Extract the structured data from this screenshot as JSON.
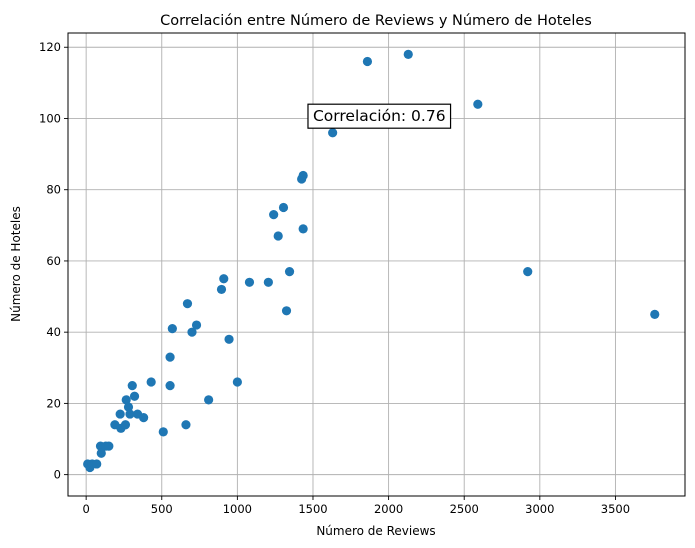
{
  "chart_data": {
    "type": "scatter",
    "title": "Correlación entre Número de Reviews y Número de Hoteles",
    "xlabel": "Número de Reviews",
    "ylabel": "Número de Hoteles",
    "xlim": [
      -120,
      3960
    ],
    "ylim": [
      -6,
      124
    ],
    "xticks": [
      0,
      500,
      1000,
      1500,
      2000,
      2500,
      3000,
      3500
    ],
    "yticks": [
      0,
      20,
      40,
      60,
      80,
      100,
      120
    ],
    "grid": true,
    "marker_color": "#1f77b4",
    "annotation": {
      "text": "Correlación: 0.76",
      "x": 1500,
      "y": 100.5
    },
    "points": [
      {
        "x": 10,
        "y": 3
      },
      {
        "x": 25,
        "y": 2
      },
      {
        "x": 40,
        "y": 3
      },
      {
        "x": 70,
        "y": 3
      },
      {
        "x": 95,
        "y": 8
      },
      {
        "x": 100,
        "y": 6
      },
      {
        "x": 130,
        "y": 8
      },
      {
        "x": 150,
        "y": 8
      },
      {
        "x": 190,
        "y": 14
      },
      {
        "x": 225,
        "y": 17
      },
      {
        "x": 230,
        "y": 13
      },
      {
        "x": 260,
        "y": 14
      },
      {
        "x": 265,
        "y": 21
      },
      {
        "x": 280,
        "y": 19
      },
      {
        "x": 290,
        "y": 17
      },
      {
        "x": 305,
        "y": 25
      },
      {
        "x": 320,
        "y": 22
      },
      {
        "x": 340,
        "y": 17
      },
      {
        "x": 380,
        "y": 16
      },
      {
        "x": 430,
        "y": 26
      },
      {
        "x": 510,
        "y": 12
      },
      {
        "x": 555,
        "y": 33
      },
      {
        "x": 555,
        "y": 25
      },
      {
        "x": 570,
        "y": 41
      },
      {
        "x": 660,
        "y": 14
      },
      {
        "x": 670,
        "y": 48
      },
      {
        "x": 700,
        "y": 40
      },
      {
        "x": 730,
        "y": 42
      },
      {
        "x": 810,
        "y": 21
      },
      {
        "x": 895,
        "y": 52
      },
      {
        "x": 910,
        "y": 55
      },
      {
        "x": 945,
        "y": 38
      },
      {
        "x": 1000,
        "y": 26
      },
      {
        "x": 1080,
        "y": 54
      },
      {
        "x": 1205,
        "y": 54
      },
      {
        "x": 1240,
        "y": 73
      },
      {
        "x": 1270,
        "y": 67
      },
      {
        "x": 1305,
        "y": 75
      },
      {
        "x": 1325,
        "y": 46
      },
      {
        "x": 1345,
        "y": 57
      },
      {
        "x": 1425,
        "y": 83
      },
      {
        "x": 1435,
        "y": 84
      },
      {
        "x": 1435,
        "y": 69
      },
      {
        "x": 1630,
        "y": 96
      },
      {
        "x": 1860,
        "y": 116
      },
      {
        "x": 2130,
        "y": 118
      },
      {
        "x": 2590,
        "y": 104
      },
      {
        "x": 2920,
        "y": 57
      },
      {
        "x": 3760,
        "y": 45
      }
    ]
  }
}
